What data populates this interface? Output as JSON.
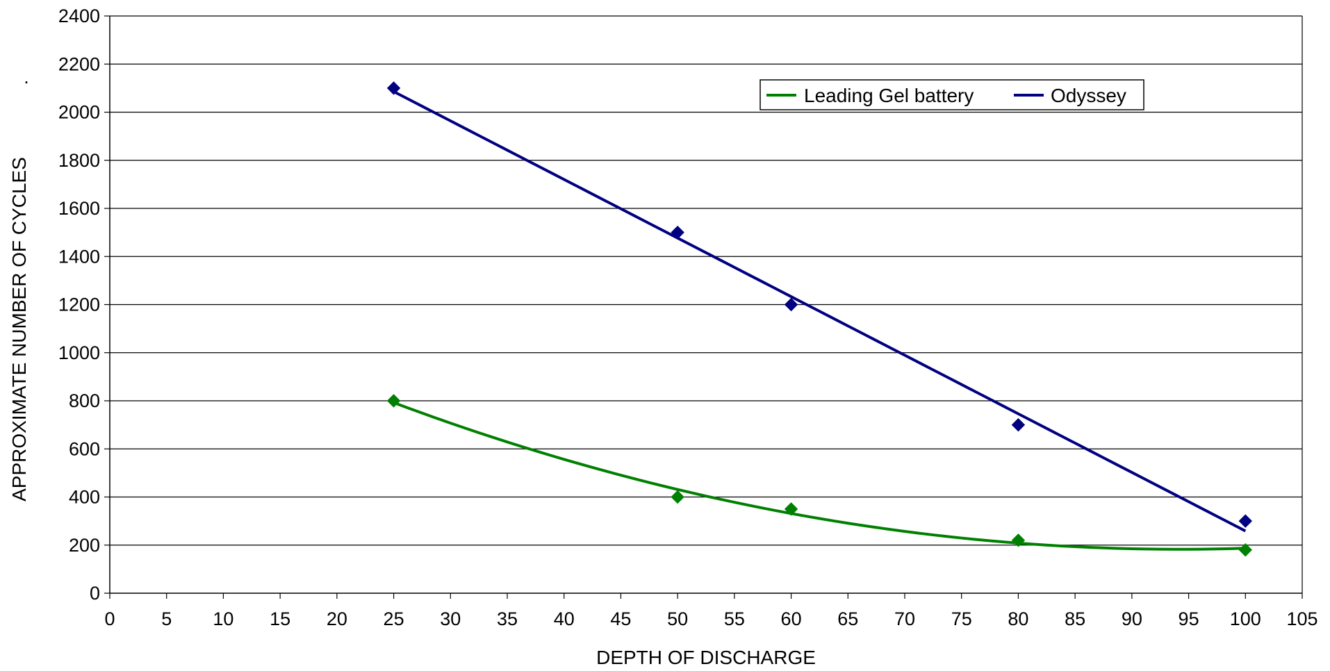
{
  "chart_data": {
    "type": "scatter",
    "title": "",
    "xlabel": "DEPTH OF DISCHARGE",
    "ylabel": "APPROXIMATE NUMBER OF CYCLES",
    "xlim": [
      0,
      105
    ],
    "ylim": [
      0,
      2400
    ],
    "x_ticks": [
      0,
      5,
      10,
      15,
      20,
      25,
      30,
      35,
      40,
      45,
      50,
      55,
      60,
      65,
      70,
      75,
      80,
      85,
      90,
      95,
      100,
      105
    ],
    "y_ticks": [
      0,
      200,
      400,
      600,
      800,
      1000,
      1200,
      1400,
      1600,
      1800,
      2000,
      2200,
      2400
    ],
    "grid": "horizontal",
    "legend_position": "top-right",
    "stray_mark": ".",
    "series": [
      {
        "name": "Leading Gel battery",
        "color": "#008000",
        "marker": "diamond",
        "trendline": "polynomial",
        "x": [
          25,
          50,
          60,
          80,
          100
        ],
        "y": [
          800,
          400,
          350,
          220,
          180
        ]
      },
      {
        "name": "Odyssey",
        "color": "#000080",
        "marker": "diamond",
        "trendline": "linear",
        "x": [
          25,
          50,
          60,
          80,
          100
        ],
        "y": [
          2100,
          1500,
          1200,
          700,
          300
        ]
      }
    ]
  }
}
